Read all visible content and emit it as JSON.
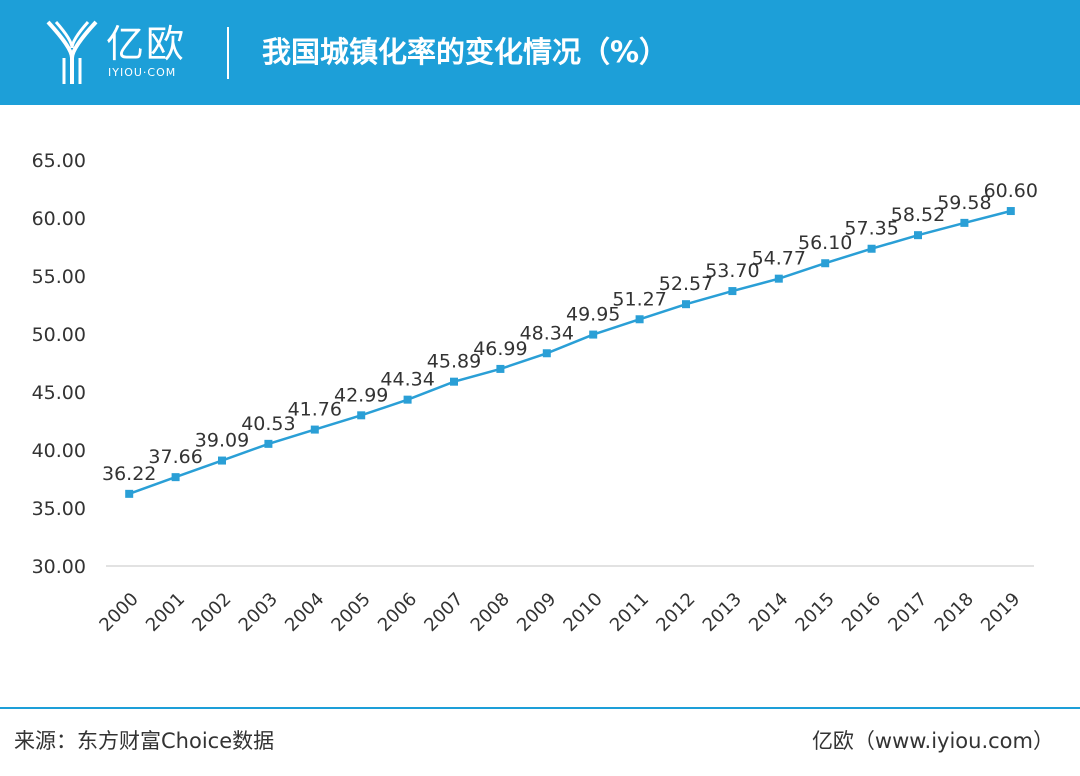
{
  "header": {
    "logo_name": "亿欧",
    "logo_domain": "IYIOU·COM",
    "title": "我国城镇化率的变化情况（%）"
  },
  "colors": {
    "brand": "#1d9fd8",
    "series": "#2a9fd6",
    "text": "#333333",
    "axis": "#d9d9d9"
  },
  "chart_data": {
    "type": "line",
    "title": "我国城镇化率的变化情况（%）",
    "xlabel": "",
    "ylabel": "",
    "categories": [
      "2000",
      "2001",
      "2002",
      "2003",
      "2004",
      "2005",
      "2006",
      "2007",
      "2008",
      "2009",
      "2010",
      "2011",
      "2012",
      "2013",
      "2014",
      "2015",
      "2016",
      "2017",
      "2018",
      "2019"
    ],
    "series": [
      {
        "name": "城镇化率",
        "values": [
          36.22,
          37.66,
          39.09,
          40.53,
          41.76,
          42.99,
          44.34,
          45.89,
          46.99,
          48.34,
          49.95,
          51.27,
          52.57,
          53.7,
          54.77,
          56.1,
          57.35,
          58.52,
          59.58,
          60.6
        ]
      }
    ],
    "ylim": [
      30,
      65
    ],
    "yticks": [
      30,
      35,
      40,
      45,
      50,
      55,
      60,
      65
    ],
    "marker": "square",
    "grid": false,
    "legend": "none",
    "data_labels": true
  },
  "footer": {
    "source": "来源：东方财富Choice数据",
    "credit": "亿欧（www.iyiou.com）"
  }
}
